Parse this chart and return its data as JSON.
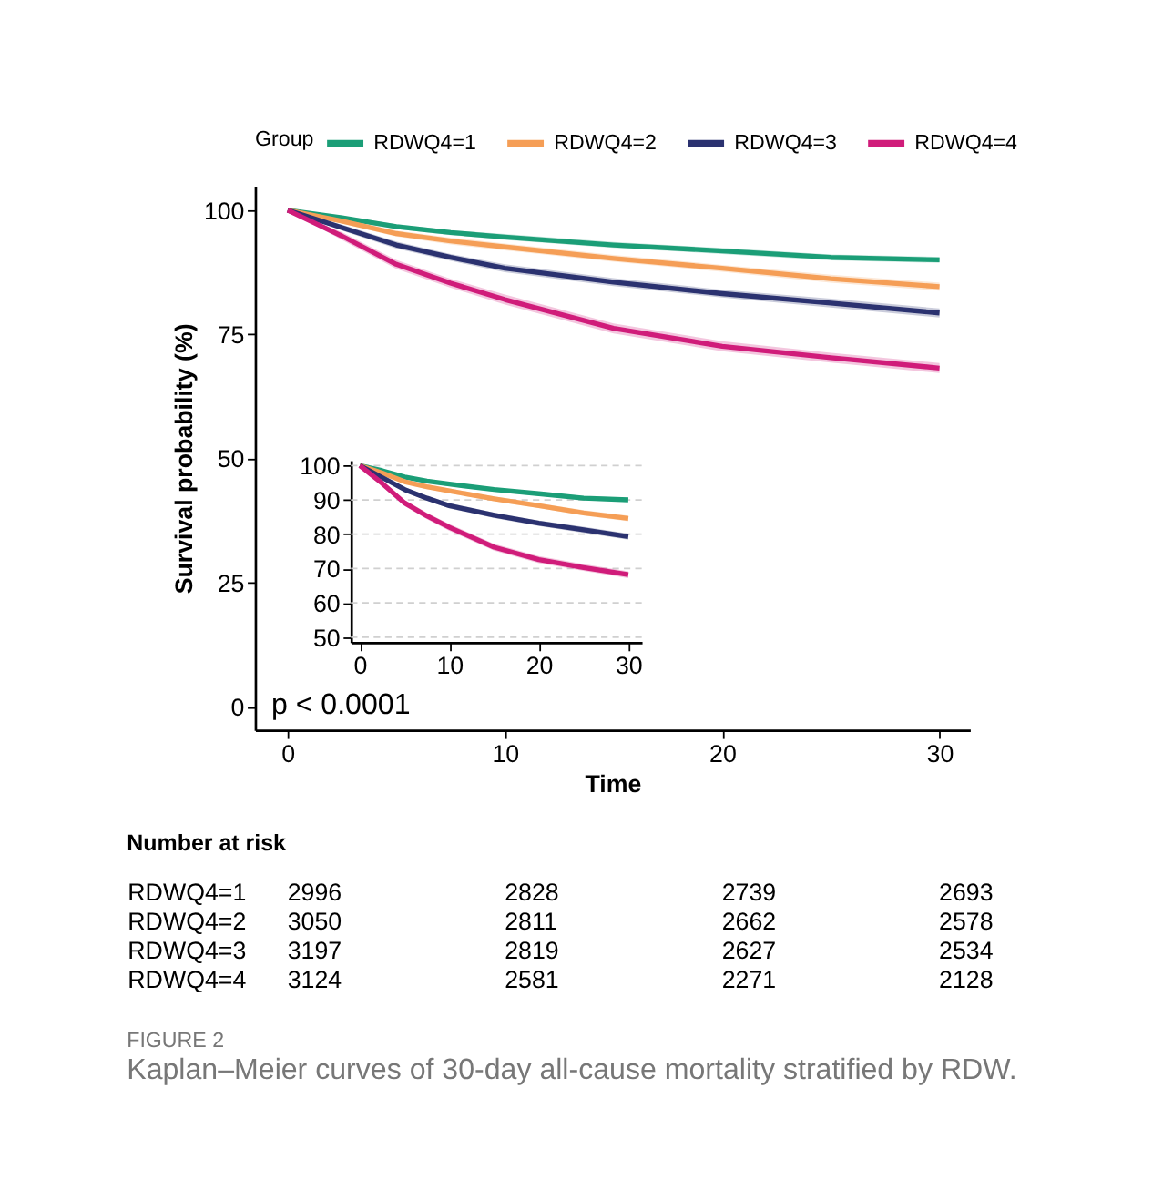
{
  "chart_data": [
    {
      "type": "line",
      "xlabel": "Time",
      "ylabel": "Survival probability (%)",
      "legend_title": "Group",
      "legend": "top",
      "xlim": [
        -1.5,
        31.4
      ],
      "ylim": [
        -4.7,
        104.9
      ],
      "xticks": [
        0,
        10,
        20,
        30
      ],
      "yticks": [
        0,
        25,
        50,
        75,
        100
      ],
      "x": [
        0,
        2.5,
        5,
        7.5,
        10,
        15,
        20,
        25,
        30
      ],
      "annotations": [
        "p < 0.0001"
      ],
      "series": [
        {
          "name": "RDWQ4=1",
          "color": "#1b9e77",
          "values": [
            100,
            98.5,
            96.7,
            95.5,
            94.6,
            93.0,
            91.8,
            90.5,
            90.0
          ],
          "lower": [
            100,
            98.1,
            96.2,
            95.0,
            94.0,
            92.4,
            91.2,
            89.9,
            89.4
          ],
          "upper": [
            100,
            98.9,
            97.2,
            96.0,
            95.2,
            93.6,
            92.4,
            91.1,
            90.6
          ]
        },
        {
          "name": "RDWQ4=2",
          "color": "#f59e56",
          "values": [
            100,
            97.8,
            95.3,
            93.8,
            92.6,
            90.3,
            88.3,
            86.2,
            84.6
          ],
          "lower": [
            100,
            97.3,
            94.7,
            93.1,
            91.9,
            89.6,
            87.6,
            85.4,
            83.8
          ],
          "upper": [
            100,
            98.3,
            95.9,
            94.5,
            93.3,
            91.0,
            89.0,
            87.0,
            85.4
          ]
        },
        {
          "name": "RDWQ4=3",
          "color": "#2b3270",
          "values": [
            100,
            96.5,
            93.0,
            90.5,
            88.3,
            85.5,
            83.2,
            81.3,
            79.3
          ],
          "lower": [
            100,
            95.9,
            92.3,
            89.8,
            87.5,
            84.7,
            82.4,
            80.4,
            78.4
          ],
          "upper": [
            100,
            97.1,
            93.7,
            91.2,
            89.1,
            86.3,
            84.0,
            82.2,
            80.2
          ]
        },
        {
          "name": "RDWQ4=4",
          "color": "#d01c7a",
          "values": [
            100,
            94.8,
            89.1,
            85.3,
            82.0,
            76.2,
            72.6,
            70.3,
            68.2
          ],
          "lower": [
            100,
            94.0,
            88.2,
            84.4,
            81.0,
            75.2,
            71.6,
            69.3,
            67.2
          ],
          "upper": [
            100,
            95.6,
            90.0,
            86.2,
            83.0,
            77.2,
            73.6,
            71.3,
            69.2
          ]
        }
      ]
    },
    {
      "type": "line",
      "xlim": [
        -1,
        31.5
      ],
      "ylim": [
        48.5,
        101.5
      ],
      "xticks": [
        0,
        10,
        20,
        30
      ],
      "yticks": [
        50,
        60,
        70,
        80,
        90,
        100
      ],
      "grid": "y",
      "x": [
        0,
        2.5,
        5,
        7.5,
        10,
        15,
        20,
        25,
        30
      ],
      "series": [
        {
          "color": "#1b9e77",
          "values": [
            100,
            98.5,
            96.7,
            95.5,
            94.6,
            93.0,
            91.8,
            90.5,
            90.0
          ],
          "lower": [
            100,
            98.1,
            96.2,
            95.0,
            94.0,
            92.4,
            91.2,
            89.9,
            89.4
          ],
          "upper": [
            100,
            98.9,
            97.2,
            96.0,
            95.2,
            93.6,
            92.4,
            91.1,
            90.6
          ]
        },
        {
          "color": "#f59e56",
          "values": [
            100,
            97.8,
            95.3,
            93.8,
            92.6,
            90.3,
            88.3,
            86.2,
            84.6
          ],
          "lower": [
            100,
            97.3,
            94.7,
            93.1,
            91.9,
            89.6,
            87.6,
            85.4,
            83.8
          ],
          "upper": [
            100,
            98.3,
            95.9,
            94.5,
            93.3,
            91.0,
            89.0,
            87.0,
            85.4
          ]
        },
        {
          "color": "#2b3270",
          "values": [
            100,
            96.5,
            93.0,
            90.5,
            88.3,
            85.5,
            83.2,
            81.3,
            79.3
          ],
          "lower": [
            100,
            95.9,
            92.3,
            89.8,
            87.5,
            84.7,
            82.4,
            80.4,
            78.4
          ],
          "upper": [
            100,
            97.1,
            93.7,
            91.2,
            89.1,
            86.3,
            84.0,
            82.2,
            80.2
          ]
        },
        {
          "color": "#d01c7a",
          "values": [
            100,
            94.8,
            89.1,
            85.3,
            82.0,
            76.2,
            72.6,
            70.3,
            68.2
          ],
          "lower": [
            100,
            94.0,
            88.2,
            84.4,
            81.0,
            75.2,
            71.6,
            69.3,
            67.2
          ],
          "upper": [
            100,
            95.6,
            90.0,
            86.2,
            83.0,
            77.2,
            73.6,
            71.3,
            69.2
          ]
        }
      ]
    },
    {
      "type": "heatmap",
      "title": "Number at risk",
      "categories": [
        null,
        null,
        null,
        null
      ],
      "y_categories": [
        "RDWQ4=1",
        "RDWQ4=2",
        "RDWQ4=3",
        "RDWQ4=4"
      ],
      "data_labels": true,
      "annotations": [
        "FIGURE 2",
        "Kaplan–Meier curves of 30-day all-cause mortality stratified by RDW."
      ],
      "cells": [
        [
          2996,
          2828,
          2739,
          2693
        ],
        [
          3050,
          2811,
          2662,
          2578
        ],
        [
          3197,
          2819,
          2627,
          2534
        ],
        [
          3124,
          2581,
          2271,
          2128
        ]
      ]
    }
  ]
}
